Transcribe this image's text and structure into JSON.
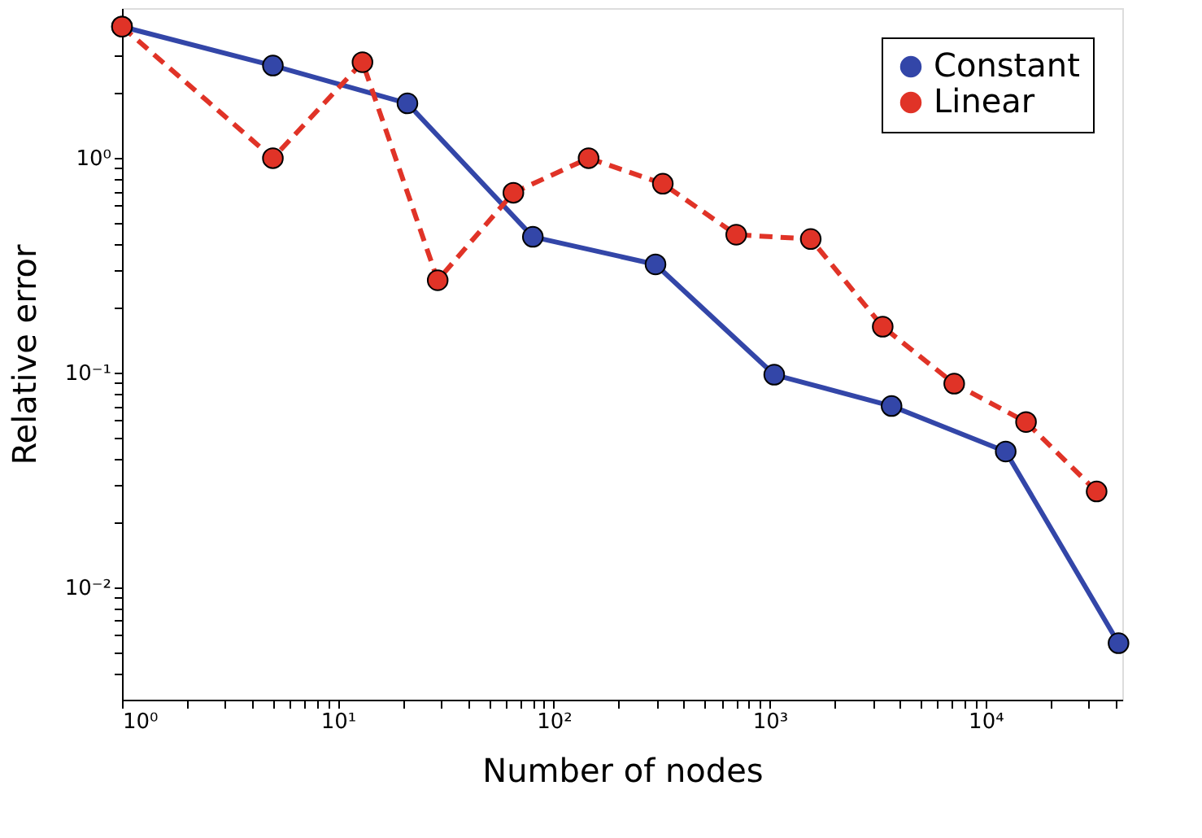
{
  "chart_data": {
    "type": "line",
    "xlabel": "Number of nodes",
    "ylabel": "Relative error",
    "log": "xy",
    "grid": false,
    "legend": "top right",
    "marker": "circle",
    "xlim": [
      1,
      43000
    ],
    "ylim": [
      0.003,
      5
    ],
    "xticks": [
      {
        "value": 1,
        "label": "10⁰"
      },
      {
        "value": 2,
        "label": null
      },
      {
        "value": 3,
        "label": null
      },
      {
        "value": 4,
        "label": null
      },
      {
        "value": 5,
        "label": null
      },
      {
        "value": 6,
        "label": null
      },
      {
        "value": 7,
        "label": null
      },
      {
        "value": 8,
        "label": null
      },
      {
        "value": 9,
        "label": null
      },
      {
        "value": 10,
        "label": "10¹"
      },
      {
        "value": 20,
        "label": null
      },
      {
        "value": 30,
        "label": null
      },
      {
        "value": 40,
        "label": null
      },
      {
        "value": 50,
        "label": null
      },
      {
        "value": 60,
        "label": null
      },
      {
        "value": 70,
        "label": null
      },
      {
        "value": 80,
        "label": null
      },
      {
        "value": 90,
        "label": null
      },
      {
        "value": 100,
        "label": "10²"
      },
      {
        "value": 200,
        "label": null
      },
      {
        "value": 300,
        "label": null
      },
      {
        "value": 400,
        "label": null
      },
      {
        "value": 500,
        "label": null
      },
      {
        "value": 600,
        "label": null
      },
      {
        "value": 700,
        "label": null
      },
      {
        "value": 800,
        "label": null
      },
      {
        "value": 900,
        "label": null
      },
      {
        "value": 1000,
        "label": "10³"
      },
      {
        "value": 2000,
        "label": null
      },
      {
        "value": 3000,
        "label": null
      },
      {
        "value": 4000,
        "label": null
      },
      {
        "value": 5000,
        "label": null
      },
      {
        "value": 6000,
        "label": null
      },
      {
        "value": 7000,
        "label": null
      },
      {
        "value": 8000,
        "label": null
      },
      {
        "value": 9000,
        "label": null
      },
      {
        "value": 10000,
        "label": "10⁴"
      },
      {
        "value": 20000,
        "label": null
      },
      {
        "value": 30000,
        "label": null
      },
      {
        "value": 40000,
        "label": null
      }
    ],
    "yticks": [
      {
        "value": 0.004,
        "label": null
      },
      {
        "value": 0.005,
        "label": null
      },
      {
        "value": 0.006,
        "label": null
      },
      {
        "value": 0.007,
        "label": null
      },
      {
        "value": 0.008,
        "label": null
      },
      {
        "value": 0.009,
        "label": null
      },
      {
        "value": 0.01,
        "label": "10⁻²"
      },
      {
        "value": 0.02,
        "label": null
      },
      {
        "value": 0.03,
        "label": null
      },
      {
        "value": 0.04,
        "label": null
      },
      {
        "value": 0.05,
        "label": null
      },
      {
        "value": 0.06,
        "label": null
      },
      {
        "value": 0.07,
        "label": null
      },
      {
        "value": 0.08,
        "label": null
      },
      {
        "value": 0.09,
        "label": null
      },
      {
        "value": 0.1,
        "label": "10⁻¹"
      },
      {
        "value": 0.2,
        "label": null
      },
      {
        "value": 0.3,
        "label": null
      },
      {
        "value": 0.4,
        "label": null
      },
      {
        "value": 0.5,
        "label": null
      },
      {
        "value": 0.6,
        "label": null
      },
      {
        "value": 0.7,
        "label": null
      },
      {
        "value": 0.8,
        "label": null
      },
      {
        "value": 0.9,
        "label": null
      },
      {
        "value": 1,
        "label": "10⁰"
      },
      {
        "value": 2,
        "label": null
      },
      {
        "value": 3,
        "label": null
      },
      {
        "value": 4,
        "label": null
      }
    ],
    "series": [
      {
        "name": "Constant",
        "color": "#3346a8",
        "line_style": "solid",
        "x": [
          1,
          5,
          21,
          80,
          296,
          1050,
          3670,
          12400,
          41300
        ],
        "values": [
          4.1,
          2.7,
          1.8,
          0.43,
          0.32,
          0.098,
          0.07,
          0.043,
          0.0055
        ]
      },
      {
        "name": "Linear",
        "color": "#e03327",
        "line_style": "dashed",
        "x": [
          1,
          5,
          13,
          29,
          65,
          145,
          320,
          700,
          1550,
          3340,
          7160,
          15400,
          32700
        ],
        "values": [
          4.1,
          1.0,
          2.8,
          0.27,
          0.69,
          1.0,
          0.76,
          0.44,
          0.42,
          0.164,
          0.089,
          0.059,
          0.028
        ]
      }
    ]
  }
}
